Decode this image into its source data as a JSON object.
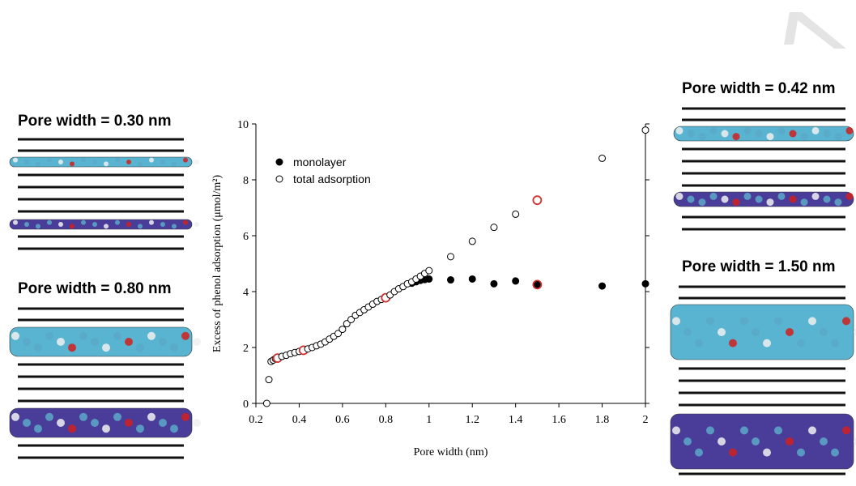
{
  "chart_data": {
    "type": "scatter",
    "xlabel": "Pore width (nm)",
    "ylabel": "Excess of phenol adsorption (μmol/m²)",
    "xlim": [
      0.2,
      2.0
    ],
    "ylim": [
      0,
      10
    ],
    "xticks": [
      0.2,
      0.4,
      0.6,
      0.8,
      1.0,
      1.2,
      1.4,
      1.6,
      1.8,
      2.0
    ],
    "yticks": [
      0,
      2,
      4,
      6,
      8,
      10
    ],
    "highlight": {
      "color": "#d03030",
      "x": [
        0.3,
        0.42,
        0.8,
        1.5
      ]
    },
    "series": [
      {
        "name": "monolayer",
        "color": "#000000",
        "marker": "filled",
        "x": [
          0.92,
          0.94,
          0.96,
          0.98,
          1.0,
          1.1,
          1.2,
          1.3,
          1.4,
          1.5,
          1.8,
          2.0
        ],
        "values": [
          4.3,
          4.35,
          4.4,
          4.43,
          4.45,
          4.42,
          4.45,
          4.28,
          4.38,
          4.25,
          4.2,
          4.28
        ]
      },
      {
        "name": "total adsorption",
        "color": "#000000",
        "marker": "open",
        "x": [
          0.25,
          0.26,
          0.27,
          0.28,
          0.29,
          0.3,
          0.32,
          0.34,
          0.36,
          0.38,
          0.4,
          0.42,
          0.44,
          0.46,
          0.48,
          0.5,
          0.52,
          0.54,
          0.56,
          0.58,
          0.6,
          0.62,
          0.64,
          0.66,
          0.68,
          0.7,
          0.72,
          0.74,
          0.76,
          0.78,
          0.8,
          0.82,
          0.84,
          0.86,
          0.88,
          0.9,
          0.92,
          0.94,
          0.96,
          0.98,
          1.0,
          1.1,
          1.2,
          1.3,
          1.4,
          1.5,
          1.8,
          2.0
        ],
        "values": [
          0.0,
          0.85,
          1.5,
          1.55,
          1.6,
          1.62,
          1.68,
          1.72,
          1.78,
          1.82,
          1.86,
          1.9,
          1.95,
          2.0,
          2.06,
          2.12,
          2.2,
          2.3,
          2.4,
          2.5,
          2.65,
          2.85,
          3.0,
          3.15,
          3.25,
          3.35,
          3.45,
          3.55,
          3.65,
          3.72,
          3.78,
          3.88,
          4.0,
          4.1,
          4.18,
          4.28,
          4.35,
          4.45,
          4.55,
          4.65,
          4.75,
          5.25,
          5.8,
          6.3,
          6.77,
          7.27,
          8.77,
          9.78
        ]
      }
    ]
  },
  "panels": [
    {
      "title": "Pore width = 0.30 nm"
    },
    {
      "title": "Pore width = 0.80 nm"
    },
    {
      "title": "Pore width = 0.42 nm"
    },
    {
      "title": "Pore width = 1.50 nm"
    }
  ]
}
